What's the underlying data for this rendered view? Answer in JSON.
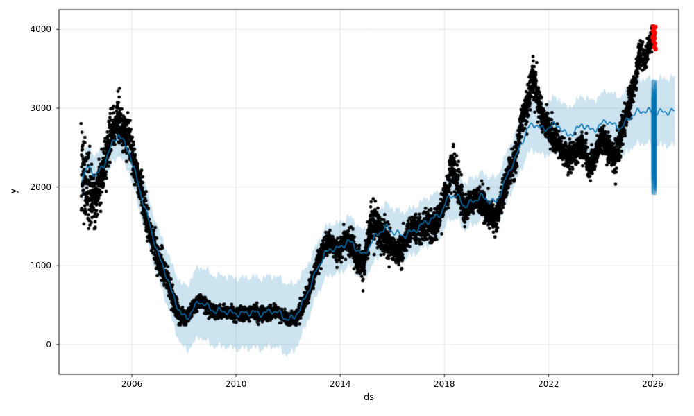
{
  "figure": {
    "background": "#ffffff"
  },
  "chart_data": {
    "type": "scatter",
    "xlabel": "ds",
    "ylabel": "y",
    "xlim": [
      2003.2,
      2027.0
    ],
    "ylim": [
      -380,
      4250
    ],
    "grid": true,
    "x_ticks": [
      {
        "value": 2006,
        "label": "2006"
      },
      {
        "value": 2010,
        "label": "2010"
      },
      {
        "value": 2014,
        "label": "2014"
      },
      {
        "value": 2018,
        "label": "2018"
      },
      {
        "value": 2022,
        "label": "2022"
      },
      {
        "value": 2026,
        "label": "2026"
      }
    ],
    "y_ticks": [
      {
        "value": 0,
        "label": "0"
      },
      {
        "value": 1000,
        "label": "1000"
      },
      {
        "value": 2000,
        "label": "2000"
      },
      {
        "value": 3000,
        "label": "3000"
      },
      {
        "value": 4000,
        "label": "4000"
      }
    ],
    "colors": {
      "observed": "#000000",
      "forecast_line": "#0072B2",
      "uncertainty_band": "#0072B2",
      "band_alpha": 0.2,
      "anomaly": "#ff0000",
      "grid": "#d9d9d9",
      "frame": "#000000"
    },
    "series": [
      {
        "name": "observed",
        "type": "scatter",
        "color": "#000000",
        "marker_radius": 2.4,
        "x_start": 2004.05,
        "x_end": 2026.08,
        "points_per_year": 310,
        "seed": 7,
        "y_clamp": [
          250,
          4060
        ],
        "center_keypoints": [
          [
            2004.1,
            2150
          ],
          [
            2004.35,
            1950
          ],
          [
            2004.6,
            1850
          ],
          [
            2004.85,
            2150
          ],
          [
            2005.05,
            2450
          ],
          [
            2005.25,
            2750
          ],
          [
            2005.45,
            2850
          ],
          [
            2005.65,
            2700
          ],
          [
            2005.9,
            2600
          ],
          [
            2006.1,
            2300
          ],
          [
            2006.35,
            1950
          ],
          [
            2006.6,
            1550
          ],
          [
            2006.85,
            1250
          ],
          [
            2007.1,
            1000
          ],
          [
            2007.35,
            820
          ],
          [
            2007.6,
            560
          ],
          [
            2007.85,
            370
          ],
          [
            2008.1,
            330
          ],
          [
            2008.35,
            470
          ],
          [
            2008.6,
            560
          ],
          [
            2008.85,
            490
          ],
          [
            2009.1,
            410
          ],
          [
            2009.4,
            400
          ],
          [
            2009.7,
            420
          ],
          [
            2010.0,
            370
          ],
          [
            2010.3,
            390
          ],
          [
            2010.6,
            400
          ],
          [
            2010.9,
            380
          ],
          [
            2011.2,
            380
          ],
          [
            2011.5,
            430
          ],
          [
            2011.8,
            380
          ],
          [
            2012.0,
            300
          ],
          [
            2012.3,
            330
          ],
          [
            2012.6,
            520
          ],
          [
            2012.9,
            780
          ],
          [
            2013.15,
            1050
          ],
          [
            2013.4,
            1250
          ],
          [
            2013.65,
            1300
          ],
          [
            2013.9,
            1150
          ],
          [
            2014.15,
            1300
          ],
          [
            2014.4,
            1320
          ],
          [
            2014.65,
            1080
          ],
          [
            2014.9,
            1020
          ],
          [
            2015.15,
            1500
          ],
          [
            2015.35,
            1550
          ],
          [
            2015.6,
            1400
          ],
          [
            2015.85,
            1300
          ],
          [
            2016.1,
            1150
          ],
          [
            2016.35,
            1200
          ],
          [
            2016.6,
            1400
          ],
          [
            2016.85,
            1500
          ],
          [
            2017.1,
            1450
          ],
          [
            2017.35,
            1550
          ],
          [
            2017.6,
            1500
          ],
          [
            2017.85,
            1650
          ],
          [
            2018.1,
            1950
          ],
          [
            2018.3,
            2300
          ],
          [
            2018.5,
            2050
          ],
          [
            2018.75,
            1700
          ],
          [
            2019.0,
            1800
          ],
          [
            2019.25,
            1870
          ],
          [
            2019.5,
            1780
          ],
          [
            2019.75,
            1650
          ],
          [
            2020.0,
            1600
          ],
          [
            2020.25,
            1900
          ],
          [
            2020.5,
            2200
          ],
          [
            2020.75,
            2400
          ],
          [
            2021.0,
            2900
          ],
          [
            2021.2,
            3050
          ],
          [
            2021.4,
            3450
          ],
          [
            2021.6,
            3100
          ],
          [
            2021.8,
            2850
          ],
          [
            2022.05,
            2700
          ],
          [
            2022.3,
            2600
          ],
          [
            2022.55,
            2450
          ],
          [
            2022.8,
            2350
          ],
          [
            2023.05,
            2450
          ],
          [
            2023.3,
            2550
          ],
          [
            2023.55,
            2250
          ],
          [
            2023.8,
            2400
          ],
          [
            2024.05,
            2600
          ],
          [
            2024.3,
            2500
          ],
          [
            2024.55,
            2350
          ],
          [
            2024.8,
            2650
          ],
          [
            2025.05,
            3000
          ],
          [
            2025.3,
            3300
          ],
          [
            2025.5,
            3750
          ],
          [
            2025.7,
            3550
          ],
          [
            2025.85,
            3800
          ],
          [
            2026.0,
            3950
          ]
        ],
        "sd_keypoints": [
          [
            2004.1,
            280
          ],
          [
            2004.6,
            180
          ],
          [
            2005.0,
            140
          ],
          [
            2005.5,
            130
          ],
          [
            2006.0,
            120
          ],
          [
            2006.5,
            100
          ],
          [
            2007.0,
            90
          ],
          [
            2007.6,
            70
          ],
          [
            2008.0,
            45
          ],
          [
            2009.0,
            40
          ],
          [
            2012.0,
            40
          ],
          [
            2012.6,
            55
          ],
          [
            2013.0,
            65
          ],
          [
            2013.5,
            70
          ],
          [
            2014.0,
            75
          ],
          [
            2015.0,
            100
          ],
          [
            2015.3,
            125
          ],
          [
            2016.0,
            90
          ],
          [
            2017.0,
            75
          ],
          [
            2018.0,
            110
          ],
          [
            2018.3,
            140
          ],
          [
            2019.0,
            70
          ],
          [
            2020.0,
            90
          ],
          [
            2020.8,
            100
          ],
          [
            2021.3,
            125
          ],
          [
            2022.0,
            90
          ],
          [
            2023.0,
            80
          ],
          [
            2024.0,
            85
          ],
          [
            2024.6,
            110
          ],
          [
            2025.0,
            100
          ],
          [
            2025.5,
            85
          ],
          [
            2026.05,
            60
          ]
        ]
      },
      {
        "name": "forecast",
        "type": "line",
        "color": "#0072B2",
        "line_width": 1.6,
        "x_start": 2004.05,
        "x_end": 2026.85,
        "keypoints": [
          [
            2004.05,
            2100
          ],
          [
            2004.3,
            2250
          ],
          [
            2004.6,
            2150
          ],
          [
            2004.9,
            2250
          ],
          [
            2005.1,
            2450
          ],
          [
            2005.35,
            2600
          ],
          [
            2005.5,
            2680
          ],
          [
            2005.7,
            2550
          ],
          [
            2005.9,
            2450
          ],
          [
            2006.1,
            2200
          ],
          [
            2006.4,
            1850
          ],
          [
            2006.7,
            1500
          ],
          [
            2007.0,
            1150
          ],
          [
            2007.3,
            900
          ],
          [
            2007.6,
            600
          ],
          [
            2007.9,
            380
          ],
          [
            2008.1,
            330
          ],
          [
            2008.4,
            470
          ],
          [
            2008.6,
            550
          ],
          [
            2008.9,
            480
          ],
          [
            2009.2,
            420
          ],
          [
            2009.5,
            430
          ],
          [
            2009.8,
            400
          ],
          [
            2010.2,
            390
          ],
          [
            2010.6,
            410
          ],
          [
            2011.0,
            390
          ],
          [
            2011.4,
            430
          ],
          [
            2011.7,
            390
          ],
          [
            2011.95,
            320
          ],
          [
            2012.2,
            330
          ],
          [
            2012.5,
            480
          ],
          [
            2012.8,
            700
          ],
          [
            2013.1,
            950
          ],
          [
            2013.4,
            1150
          ],
          [
            2013.7,
            1220
          ],
          [
            2014.0,
            1220
          ],
          [
            2014.3,
            1320
          ],
          [
            2014.6,
            1230
          ],
          [
            2014.9,
            1120
          ],
          [
            2015.2,
            1300
          ],
          [
            2015.5,
            1430
          ],
          [
            2015.8,
            1480
          ],
          [
            2016.1,
            1420
          ],
          [
            2016.4,
            1380
          ],
          [
            2016.7,
            1420
          ],
          [
            2017.0,
            1480
          ],
          [
            2017.3,
            1560
          ],
          [
            2017.6,
            1600
          ],
          [
            2017.9,
            1680
          ],
          [
            2018.2,
            1900
          ],
          [
            2018.5,
            1880
          ],
          [
            2018.8,
            1750
          ],
          [
            2019.1,
            1820
          ],
          [
            2019.4,
            1880
          ],
          [
            2019.7,
            1830
          ],
          [
            2020.0,
            1800
          ],
          [
            2020.3,
            2050
          ],
          [
            2020.6,
            2280
          ],
          [
            2020.9,
            2500
          ],
          [
            2021.2,
            2750
          ],
          [
            2021.5,
            2800
          ],
          [
            2021.8,
            2720
          ],
          [
            2022.1,
            2780
          ],
          [
            2022.4,
            2780
          ],
          [
            2022.7,
            2650
          ],
          [
            2023.0,
            2700
          ],
          [
            2023.3,
            2800
          ],
          [
            2023.6,
            2720
          ],
          [
            2023.9,
            2750
          ],
          [
            2024.2,
            2850
          ],
          [
            2024.5,
            2780
          ],
          [
            2024.8,
            2750
          ],
          [
            2025.1,
            2880
          ],
          [
            2025.4,
            2950
          ],
          [
            2025.7,
            2970
          ],
          [
            2026.0,
            2950
          ],
          [
            2026.4,
            2950
          ],
          [
            2026.8,
            2960
          ]
        ]
      },
      {
        "name": "uncertainty",
        "type": "band",
        "color": "#0072B2",
        "alpha": 0.2,
        "half_width_keypoints": [
          [
            2004.05,
            260
          ],
          [
            2006.0,
            260
          ],
          [
            2007.5,
            350
          ],
          [
            2008.5,
            450
          ],
          [
            2012.0,
            450
          ],
          [
            2013.0,
            330
          ],
          [
            2016.0,
            300
          ],
          [
            2019.0,
            300
          ],
          [
            2021.0,
            320
          ],
          [
            2023.0,
            360
          ],
          [
            2025.0,
            400
          ],
          [
            2026.8,
            430
          ]
        ]
      },
      {
        "name": "future-samples",
        "type": "vband",
        "color": "#0072B2",
        "x_range": [
          2025.96,
          2026.14
        ],
        "y_range": [
          1900,
          3360
        ]
      },
      {
        "name": "anomalies",
        "type": "scatter",
        "color": "#ff0000",
        "marker_radius": 3.2,
        "points": [
          [
            2025.99,
            3900
          ],
          [
            2026.01,
            3980
          ],
          [
            2026.02,
            4040
          ],
          [
            2026.03,
            3850
          ],
          [
            2026.04,
            3940
          ],
          [
            2026.05,
            4010
          ],
          [
            2026.06,
            3780
          ],
          [
            2026.07,
            3890
          ],
          [
            2026.08,
            3960
          ],
          [
            2026.09,
            3820
          ],
          [
            2026.1,
            4030
          ],
          [
            2026.11,
            3750
          ]
        ]
      }
    ]
  }
}
